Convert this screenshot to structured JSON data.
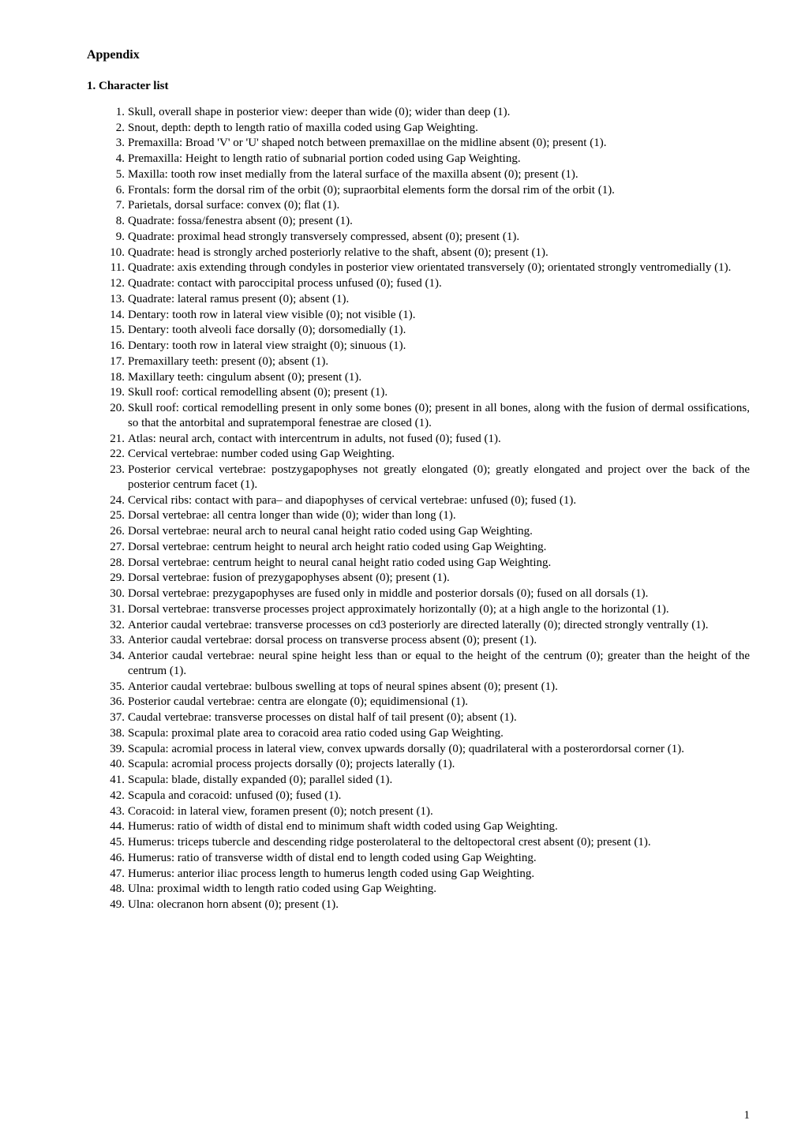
{
  "title": "Appendix",
  "subtitle": "1. Character list",
  "page_number": "1",
  "items": [
    "Skull, overall shape in posterior view: deeper than wide (0); wider than deep (1).",
    "Snout, depth: depth to length ratio of maxilla coded using Gap Weighting.",
    "Premaxilla: Broad 'V' or 'U' shaped notch between premaxillae on the midline absent (0); present (1).",
    "Premaxilla: Height to length ratio of subnarial portion coded using Gap Weighting.",
    "Maxilla: tooth row inset medially from the lateral surface of the maxilla absent (0); present (1).",
    "Frontals: form the dorsal rim of the orbit (0); supraorbital elements form the dorsal rim of the orbit (1).",
    "Parietals, dorsal surface: convex (0); flat (1).",
    "Quadrate: fossa/fenestra absent (0); present (1).",
    "Quadrate: proximal head strongly transversely compressed, absent (0); present (1).",
    "Quadrate: head is strongly arched posteriorly relative to the shaft, absent (0); present (1).",
    "Quadrate: axis extending through condyles in posterior view orientated transversely (0); orientated strongly ventromedially (1).",
    "Quadrate: contact with paroccipital process unfused (0); fused (1).",
    "Quadrate: lateral ramus present (0); absent (1).",
    "Dentary: tooth row in lateral view visible (0); not visible (1).",
    "Dentary: tooth alveoli face dorsally (0); dorsomedially (1).",
    "Dentary: tooth row in lateral view straight (0); sinuous (1).",
    "Premaxillary teeth: present (0); absent (1).",
    "Maxillary teeth: cingulum absent (0); present (1).",
    "Skull roof: cortical remodelling absent (0); present (1).",
    "Skull roof: cortical remodelling present in only some bones (0); present in all bones, along with the fusion of dermal ossifications, so that the antorbital and supratemporal fenestrae are closed (1).",
    "Atlas: neural arch, contact with intercentrum in adults, not fused (0); fused (1).",
    "Cervical vertebrae: number coded using Gap Weighting.",
    "Posterior cervical vertebrae: postzygapophyses not greatly elongated (0); greatly elongated and project over the back of the posterior centrum facet (1).",
    "Cervical ribs: contact with para– and diapophyses of cervical vertebrae: unfused (0); fused (1).",
    "Dorsal vertebrae: all centra longer than wide (0); wider than long (1).",
    "Dorsal vertebrae: neural arch to neural canal height ratio coded using Gap Weighting.",
    "Dorsal vertebrae: centrum height to neural arch height ratio coded using Gap Weighting.",
    "Dorsal vertebrae: centrum height to neural canal height ratio coded using Gap Weighting.",
    "Dorsal vertebrae: fusion of prezygapophyses absent (0); present (1).",
    "Dorsal vertebrae: prezygapophyses are fused only in middle and posterior dorsals (0); fused on all dorsals (1).",
    "Dorsal vertebrae: transverse processes project approximately horizontally (0); at a high angle to the horizontal (1).",
    "Anterior caudal vertebrae: transverse processes on cd3 posteriorly are directed laterally (0); directed strongly ventrally (1).",
    "Anterior caudal vertebrae: dorsal process on transverse process absent (0); present (1).",
    "Anterior caudal vertebrae: neural spine height less than or equal to the height of the centrum (0); greater than the height of the centrum (1).",
    "Anterior caudal vertebrae: bulbous swelling at tops of neural spines absent (0); present (1).",
    "Posterior caudal vertebrae: centra are elongate (0); equidimensional (1).",
    "Caudal vertebrae: transverse processes on distal half of tail present (0); absent (1).",
    "Scapula: proximal plate area to coracoid area ratio coded using Gap Weighting.",
    "Scapula: acromial process in lateral view, convex upwards dorsally (0); quadrilateral with a posterordorsal corner (1).",
    "Scapula: acromial process projects dorsally (0); projects laterally (1).",
    "Scapula: blade, distally expanded (0); parallel sided (1).",
    "Scapula and coracoid: unfused (0); fused (1).",
    "Coracoid: in lateral view, foramen present (0); notch present (1).",
    "Humerus: ratio of width of distal end to minimum shaft width coded using Gap Weighting.",
    "Humerus: triceps tubercle and descending ridge posterolateral to the deltopectoral crest absent (0); present (1).",
    "Humerus: ratio of transverse width of distal end to length coded using Gap Weighting.",
    "Humerus: anterior iliac process length to humerus length coded using Gap Weighting.",
    "Ulna: proximal width to length ratio coded using Gap Weighting.",
    "Ulna: olecranon horn absent (0); present (1)."
  ]
}
